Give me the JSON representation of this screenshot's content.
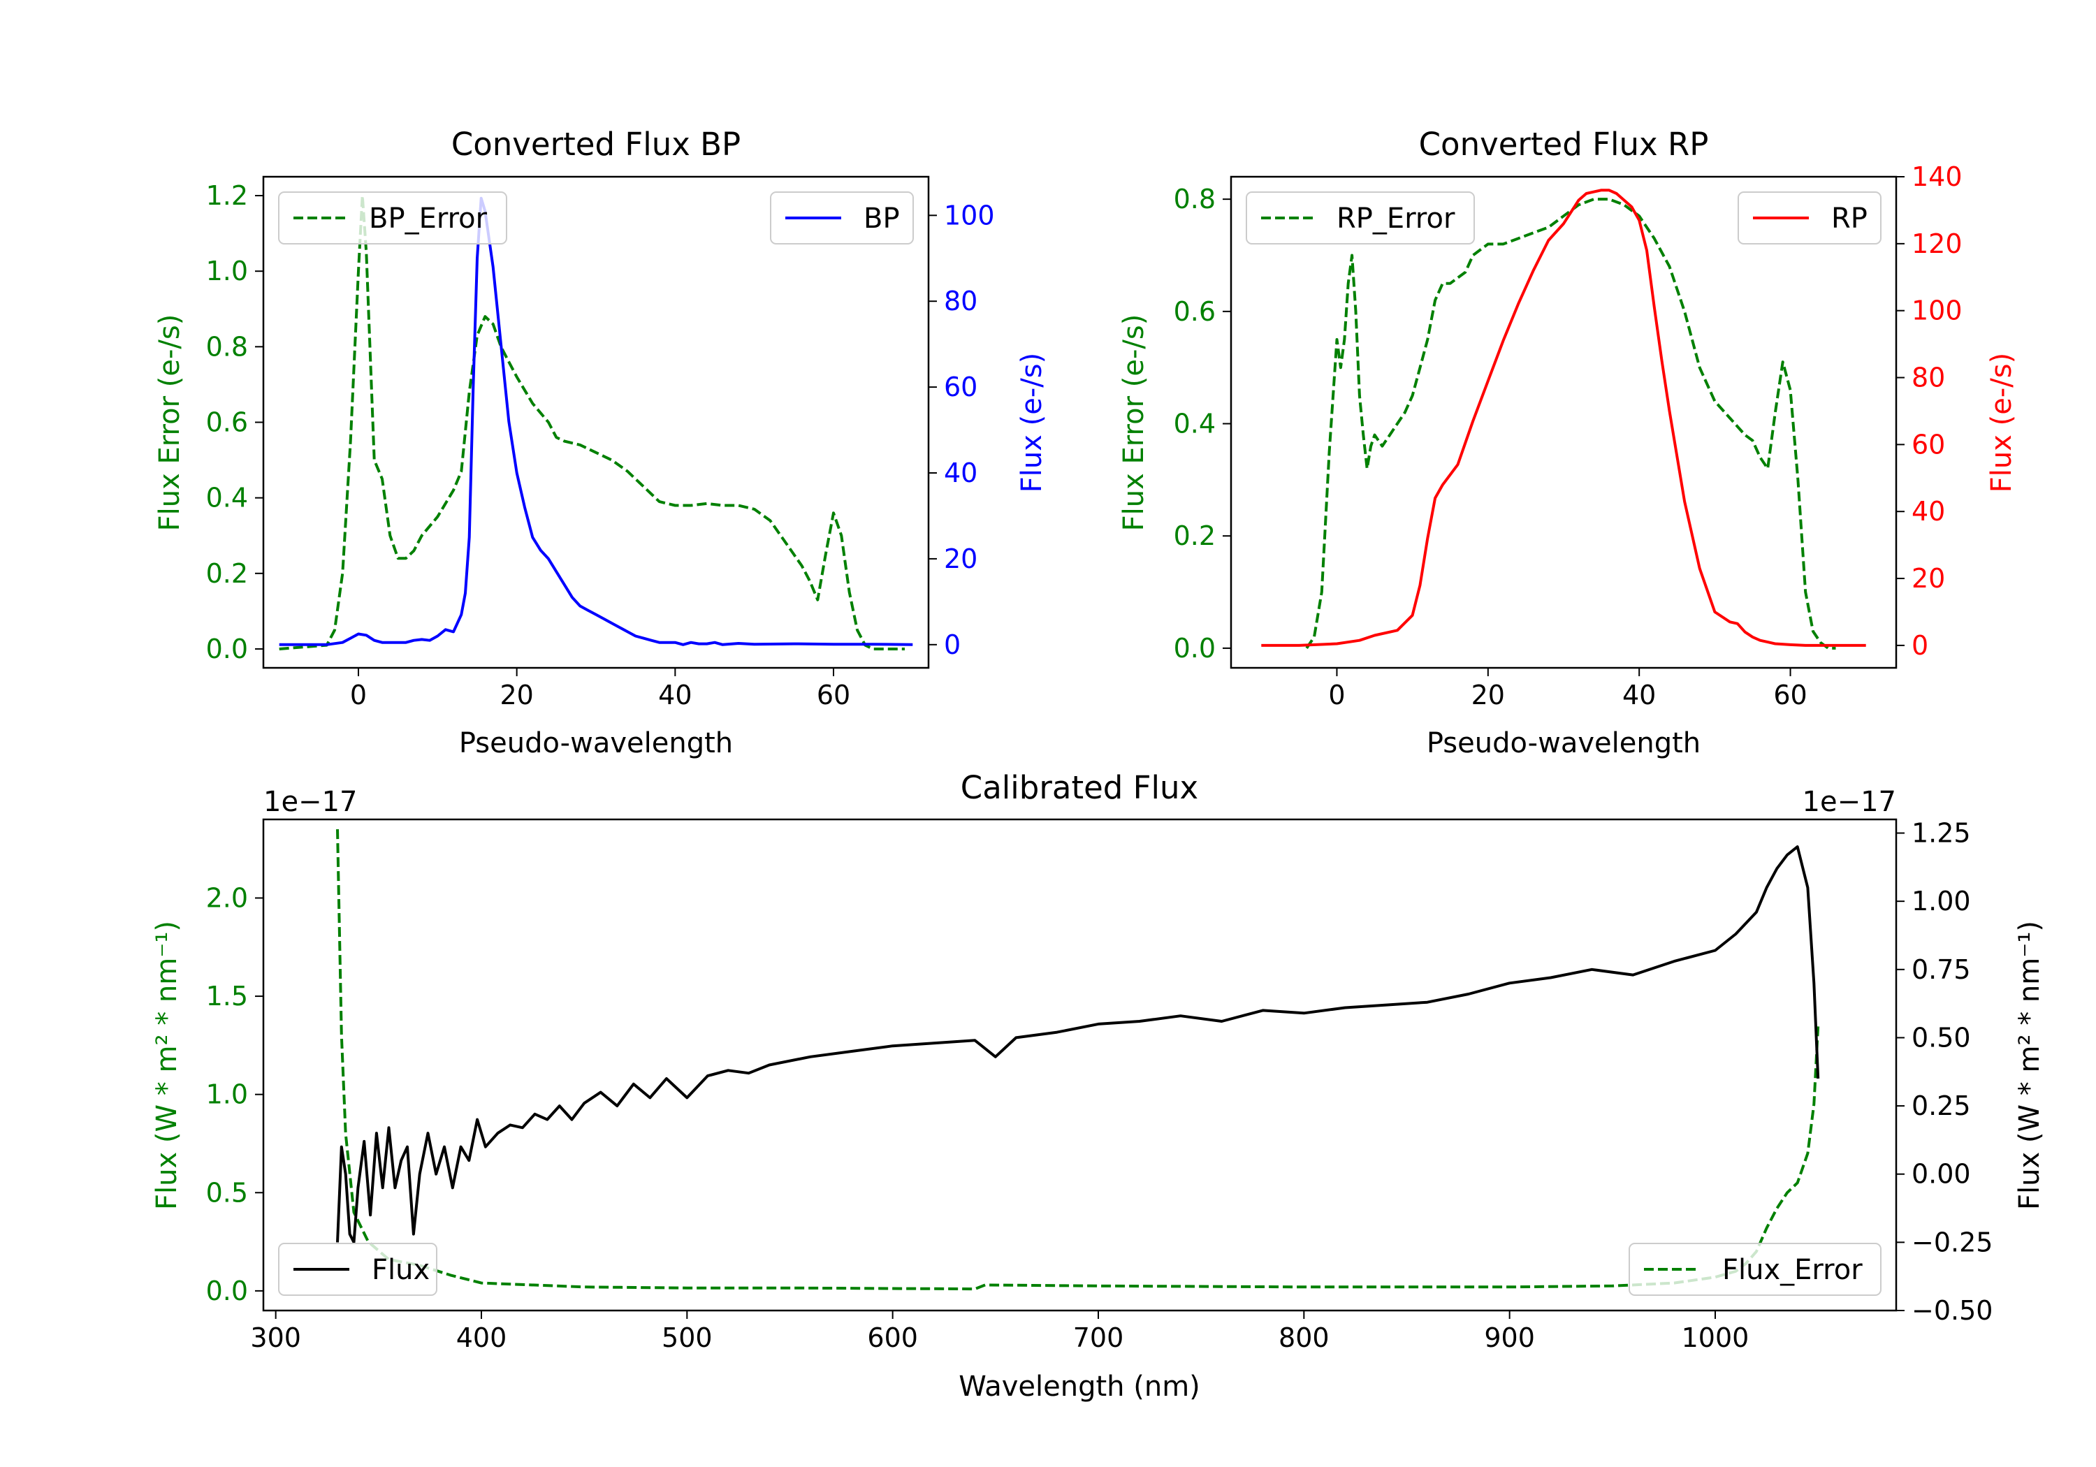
{
  "colors": {
    "bp": "#0000ff",
    "rp": "#ff0000",
    "error": "#008000",
    "flux": "#000000",
    "axis": "#000000"
  },
  "chart_data": [
    {
      "id": "bp",
      "type": "line",
      "title": "Converted Flux BP",
      "xlabel": "Pseudo-wavelength",
      "xlim": [
        -12,
        72
      ],
      "xticks": [
        0,
        20,
        40,
        60
      ],
      "left_axis": {
        "label": "Flux Error (e-/s)",
        "color": "#008000",
        "ylim": [
          -0.05,
          1.25
        ],
        "ticks": [
          0.0,
          0.2,
          0.4,
          0.6,
          0.8,
          1.0,
          1.2
        ],
        "tick_labels": [
          "0.0",
          "0.2",
          "0.4",
          "0.6",
          "0.8",
          "1.0",
          "1.2"
        ]
      },
      "right_axis": {
        "label": "Flux (e-/s)",
        "color": "#0000ff",
        "ylim": [
          -5.4,
          109
        ],
        "ticks": [
          0,
          20,
          40,
          60,
          80,
          100
        ],
        "tick_labels": [
          "0",
          "20",
          "40",
          "60",
          "80",
          "100"
        ]
      },
      "series": [
        {
          "name": "BP_Error",
          "axis": "left",
          "style": "dashed",
          "color": "#008000",
          "x": [
            -10,
            -4,
            -3,
            -2,
            -1,
            0,
            0.5,
            1,
            2,
            3,
            4,
            5,
            6,
            7,
            8,
            10,
            12,
            13,
            14,
            15,
            16,
            17,
            18,
            19,
            20,
            22,
            24,
            25,
            26,
            28,
            30,
            32,
            34,
            36,
            38,
            40,
            42,
            44,
            46,
            48,
            50,
            52,
            54,
            56,
            57,
            58,
            59,
            60,
            61,
            62,
            63,
            64,
            65,
            66,
            67,
            68,
            69
          ],
          "y": [
            0.0,
            0.01,
            0.05,
            0.2,
            0.55,
            1.0,
            1.2,
            1.05,
            0.5,
            0.45,
            0.3,
            0.24,
            0.24,
            0.26,
            0.3,
            0.35,
            0.42,
            0.47,
            0.68,
            0.83,
            0.88,
            0.86,
            0.8,
            0.76,
            0.72,
            0.65,
            0.6,
            0.56,
            0.55,
            0.54,
            0.52,
            0.5,
            0.47,
            0.43,
            0.39,
            0.38,
            0.38,
            0.385,
            0.38,
            0.38,
            0.37,
            0.34,
            0.28,
            0.22,
            0.18,
            0.13,
            0.25,
            0.36,
            0.3,
            0.15,
            0.05,
            0.01,
            0.0,
            0.0,
            0.0,
            0.0,
            0.0
          ]
        },
        {
          "name": "BP",
          "axis": "right",
          "style": "solid",
          "color": "#0000ff",
          "x": [
            -10,
            -6,
            -4,
            -2,
            -1,
            0,
            1,
            2,
            3,
            4,
            5,
            6,
            7,
            8,
            9,
            10,
            11,
            12,
            13,
            13.5,
            14,
            14.5,
            15,
            15.5,
            16,
            17,
            18,
            19,
            20,
            21,
            22,
            23,
            24,
            25,
            26,
            27,
            28,
            29,
            30,
            31,
            32,
            33,
            34,
            35,
            36,
            37,
            38,
            39,
            40,
            41,
            42,
            43,
            44,
            45,
            46,
            48,
            50,
            55,
            60,
            65,
            70
          ],
          "y": [
            0,
            0,
            0,
            0.5,
            1.5,
            2.5,
            2.2,
            1.0,
            0.5,
            0.5,
            0.5,
            0.5,
            1.0,
            1.2,
            1.0,
            2.0,
            3.5,
            3.0,
            7.0,
            12,
            25,
            60,
            90,
            104,
            101,
            88,
            70,
            52,
            40,
            32,
            25,
            22,
            20,
            17,
            14,
            11,
            9,
            8,
            7,
            6,
            5,
            4,
            3,
            2,
            1.5,
            1.0,
            0.5,
            0.5,
            0.5,
            0.0,
            0.5,
            0.2,
            0.2,
            0.5,
            0.0,
            0.3,
            0.1,
            0.2,
            0.1,
            0.1,
            0.0
          ]
        }
      ],
      "legends": [
        {
          "position": "upper left",
          "label": "BP_Error",
          "style": "dashed",
          "color": "#008000"
        },
        {
          "position": "upper right",
          "label": "BP",
          "style": "solid",
          "color": "#0000ff"
        }
      ]
    },
    {
      "id": "rp",
      "type": "line",
      "title": "Converted Flux RP",
      "xlabel": "Pseudo-wavelength",
      "xlim": [
        -14,
        74
      ],
      "xticks": [
        0,
        20,
        40,
        60
      ],
      "left_axis": {
        "label": "Flux Error (e-/s)",
        "color": "#008000",
        "ylim": [
          -0.035,
          0.84
        ],
        "ticks": [
          0.0,
          0.2,
          0.4,
          0.6,
          0.8
        ],
        "tick_labels": [
          "0.0",
          "0.2",
          "0.4",
          "0.6",
          "0.8"
        ]
      },
      "right_axis": {
        "label": "Flux (e-/s)",
        "color": "#ff0000",
        "ylim": [
          -6.7,
          140
        ],
        "ticks": [
          0,
          20,
          40,
          60,
          80,
          100,
          120,
          140
        ],
        "tick_labels": [
          "0",
          "20",
          "40",
          "60",
          "80",
          "100",
          "120",
          "140"
        ]
      },
      "series": [
        {
          "name": "RP_Error",
          "axis": "left",
          "style": "dashed",
          "color": "#008000",
          "x": [
            -4,
            -3,
            -2,
            -1,
            0,
            0.5,
            1,
            1.5,
            2,
            2.5,
            3,
            3.5,
            4,
            4.5,
            5,
            6,
            7,
            8,
            9,
            10,
            11,
            12,
            13,
            14,
            15,
            16,
            17,
            18,
            19,
            20,
            22,
            24,
            26,
            28,
            30,
            32,
            34,
            36,
            38,
            40,
            42,
            44,
            45,
            46,
            48,
            50,
            52,
            54,
            55,
            56,
            57,
            58,
            59,
            60,
            61,
            62,
            63,
            64,
            65,
            66
          ],
          "y": [
            0.0,
            0.02,
            0.1,
            0.35,
            0.55,
            0.5,
            0.55,
            0.65,
            0.7,
            0.6,
            0.45,
            0.38,
            0.32,
            0.36,
            0.38,
            0.36,
            0.38,
            0.4,
            0.42,
            0.45,
            0.5,
            0.55,
            0.62,
            0.65,
            0.65,
            0.66,
            0.67,
            0.7,
            0.71,
            0.72,
            0.72,
            0.73,
            0.74,
            0.75,
            0.77,
            0.79,
            0.8,
            0.8,
            0.79,
            0.77,
            0.73,
            0.68,
            0.64,
            0.6,
            0.5,
            0.44,
            0.41,
            0.38,
            0.37,
            0.34,
            0.32,
            0.42,
            0.51,
            0.46,
            0.3,
            0.1,
            0.03,
            0.01,
            0.0,
            0.0
          ]
        },
        {
          "name": "RP",
          "axis": "right",
          "style": "solid",
          "color": "#ff0000",
          "x": [
            -10,
            -5,
            0,
            3,
            5,
            8,
            10,
            11,
            12,
            13,
            14,
            16,
            18,
            20,
            22,
            24,
            26,
            28,
            30,
            32,
            33,
            34,
            35,
            36,
            37,
            38,
            39,
            40,
            41,
            42,
            43,
            44,
            46,
            48,
            50,
            52,
            53,
            54,
            55,
            56,
            57,
            58,
            60,
            62,
            65,
            70
          ],
          "y": [
            0,
            0,
            0.5,
            1.5,
            3,
            4.5,
            9,
            18,
            32,
            44,
            48,
            54,
            67,
            79,
            91,
            102,
            112,
            121,
            126,
            133,
            135,
            135.5,
            136,
            136,
            135,
            133,
            131,
            127,
            118,
            101,
            85,
            70,
            43,
            23,
            10,
            7,
            6.5,
            4,
            2.5,
            1.5,
            1,
            0.5,
            0.2,
            0,
            0,
            0
          ]
        }
      ],
      "legends": [
        {
          "position": "upper left",
          "label": "RP_Error",
          "style": "dashed",
          "color": "#008000"
        },
        {
          "position": "upper right",
          "label": "RP",
          "style": "solid",
          "color": "#ff0000"
        }
      ]
    },
    {
      "id": "cal",
      "type": "line",
      "title": "Calibrated Flux",
      "xlabel": "Wavelength (nm)",
      "xlim": [
        294,
        1088
      ],
      "xticks": [
        300,
        400,
        500,
        600,
        700,
        800,
        900,
        1000
      ],
      "left_axis": {
        "label": "Flux (W * m² * nm⁻¹)",
        "color": "#008000",
        "offset_text": "1e−17",
        "ylim": [
          -0.1,
          2.4
        ],
        "ticks": [
          0.0,
          0.5,
          1.0,
          1.5,
          2.0
        ],
        "tick_labels": [
          "0.0",
          "0.5",
          "1.0",
          "1.5",
          "2.0"
        ]
      },
      "right_axis": {
        "label": "Flux (W * m² * nm⁻¹)",
        "color": "#000000",
        "offset_text": "1e−17",
        "ylim": [
          -0.5,
          1.3
        ],
        "ticks": [
          -0.5,
          -0.25,
          0.0,
          0.25,
          0.5,
          0.75,
          1.0,
          1.25
        ],
        "tick_labels": [
          "−0.50",
          "−0.25",
          "0.00",
          "0.25",
          "0.50",
          "0.75",
          "1.00",
          "1.25"
        ]
      },
      "series": [
        {
          "name": "Flux_Error",
          "axis": "left",
          "style": "dashed",
          "color": "#008000",
          "x": [
            330,
            332,
            334,
            338,
            345,
            355,
            370,
            385,
            400,
            450,
            500,
            550,
            600,
            640,
            645,
            700,
            800,
            900,
            950,
            980,
            1000,
            1010,
            1015,
            1020,
            1025,
            1030,
            1035,
            1040,
            1045,
            1048,
            1050
          ],
          "y": [
            2.35,
            1.3,
            0.8,
            0.4,
            0.25,
            0.16,
            0.13,
            0.08,
            0.04,
            0.02,
            0.015,
            0.015,
            0.012,
            0.01,
            0.03,
            0.025,
            0.02,
            0.02,
            0.025,
            0.04,
            0.07,
            0.1,
            0.14,
            0.2,
            0.32,
            0.42,
            0.5,
            0.55,
            0.7,
            0.95,
            1.35
          ]
        },
        {
          "name": "Flux",
          "axis": "right",
          "style": "solid",
          "color": "#000000",
          "x": [
            330,
            332,
            334,
            336,
            338,
            340,
            343,
            346,
            349,
            352,
            355,
            358,
            361,
            364,
            367,
            370,
            374,
            378,
            382,
            386,
            390,
            394,
            398,
            402,
            408,
            414,
            420,
            426,
            432,
            438,
            444,
            450,
            458,
            466,
            474,
            482,
            490,
            500,
            510,
            520,
            530,
            540,
            560,
            580,
            600,
            620,
            640,
            650,
            660,
            680,
            700,
            720,
            740,
            760,
            780,
            800,
            820,
            840,
            860,
            880,
            900,
            920,
            940,
            960,
            980,
            1000,
            1010,
            1020,
            1025,
            1030,
            1035,
            1040,
            1045,
            1048,
            1050
          ],
          "y": [
            -0.25,
            0.1,
            0.0,
            -0.22,
            -0.25,
            -0.05,
            0.12,
            -0.15,
            0.15,
            -0.05,
            0.17,
            -0.05,
            0.05,
            0.1,
            -0.22,
            0.0,
            0.15,
            0.0,
            0.1,
            -0.05,
            0.1,
            0.05,
            0.2,
            0.1,
            0.15,
            0.18,
            0.17,
            0.22,
            0.2,
            0.25,
            0.2,
            0.26,
            0.3,
            0.25,
            0.33,
            0.28,
            0.35,
            0.28,
            0.36,
            0.38,
            0.37,
            0.4,
            0.43,
            0.45,
            0.47,
            0.48,
            0.49,
            0.43,
            0.5,
            0.52,
            0.55,
            0.56,
            0.58,
            0.56,
            0.6,
            0.59,
            0.61,
            0.62,
            0.63,
            0.66,
            0.7,
            0.72,
            0.75,
            0.73,
            0.78,
            0.82,
            0.88,
            0.96,
            1.05,
            1.12,
            1.17,
            1.2,
            1.05,
            0.7,
            0.35
          ]
        }
      ],
      "legends": [
        {
          "position": "lower left",
          "label": "Flux",
          "style": "solid",
          "color": "#000000"
        },
        {
          "position": "lower right",
          "label": "Flux_Error",
          "style": "dashed",
          "color": "#008000"
        }
      ]
    }
  ]
}
